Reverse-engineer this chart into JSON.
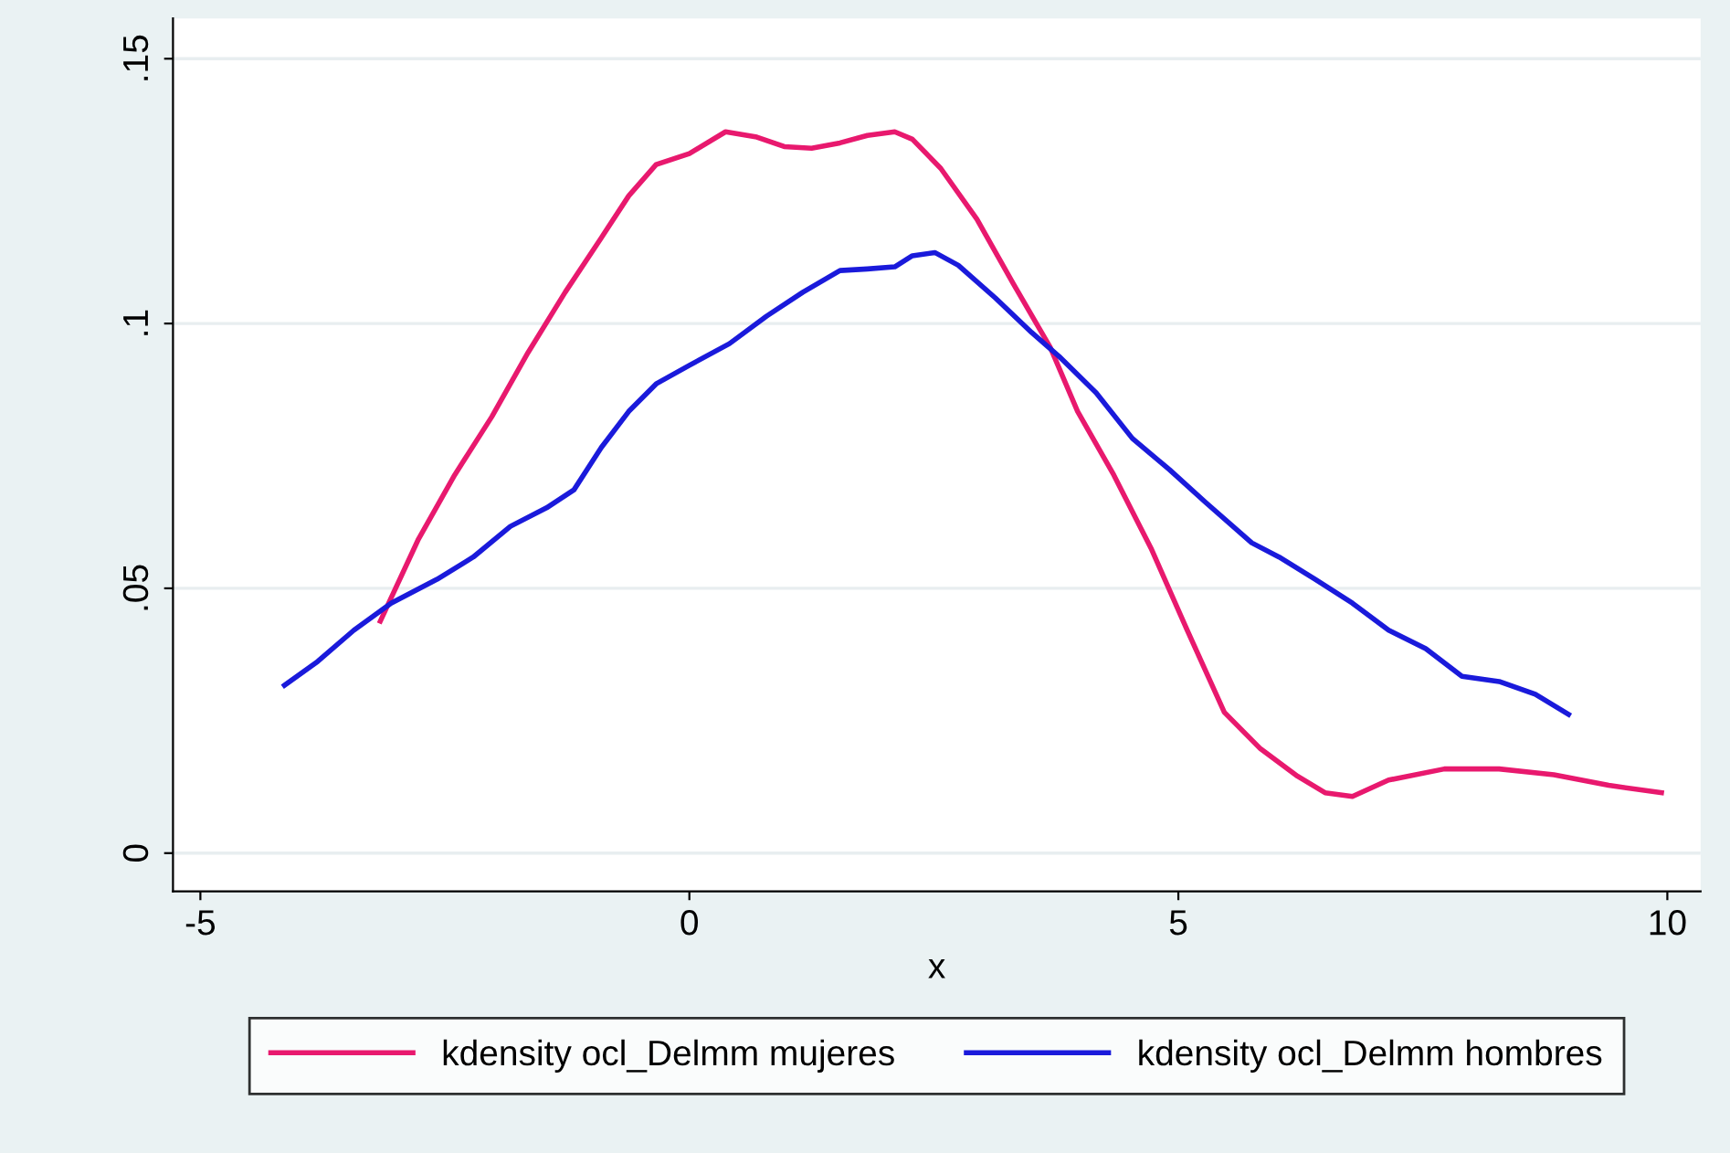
{
  "chart_data": {
    "type": "line",
    "xlabel": "x",
    "xlim": [
      -5.28,
      10.34
    ],
    "ylim": [
      -0.0072,
      0.1576
    ],
    "xticks": [
      -5,
      0,
      5,
      10
    ],
    "yticks": [
      {
        "value": 0,
        "label": "0"
      },
      {
        "value": 0.05,
        "label": ".05"
      },
      {
        "value": 0.1,
        "label": ".1"
      },
      {
        "value": 0.15,
        "label": ".15"
      }
    ],
    "grid": "y",
    "legend": "bottom",
    "marker": "none",
    "line_style": "solid",
    "series": [
      {
        "name": "kdensity ocl_Delmm mujeres",
        "color": "#e8196e",
        "x": [
          -3.16,
          -2.77,
          -2.4,
          -2.02,
          -1.65,
          -1.27,
          -0.9,
          -0.62,
          -0.34,
          0,
          0.37,
          0.69,
          0.97,
          1.25,
          1.54,
          1.82,
          2.1,
          2.28,
          2.57,
          2.94,
          3.31,
          3.69,
          3.97,
          4.34,
          4.72,
          5.09,
          5.47,
          5.84,
          6.22,
          6.5,
          6.78,
          7.15,
          7.72,
          8.28,
          8.84,
          9.4,
          9.94
        ],
        "values": [
          0.0438,
          0.0593,
          0.0714,
          0.0824,
          0.0945,
          0.1059,
          0.1162,
          0.1241,
          0.13,
          0.1321,
          0.1362,
          0.1352,
          0.1334,
          0.1331,
          0.1341,
          0.1355,
          0.1362,
          0.1348,
          0.1293,
          0.1197,
          0.1076,
          0.0955,
          0.0834,
          0.0714,
          0.0576,
          0.0421,
          0.0266,
          0.0197,
          0.0145,
          0.0114,
          0.0107,
          0.0138,
          0.0159,
          0.0159,
          0.0148,
          0.0128,
          0.0114
        ]
      },
      {
        "name": "kdensity ocl_Delmm hombres",
        "color": "#1a1adb",
        "x": [
          -4.14,
          -3.8,
          -3.43,
          -3.05,
          -2.58,
          -2.21,
          -1.83,
          -1.46,
          -1.18,
          -0.9,
          -0.62,
          -0.34,
          0,
          0.41,
          0.79,
          1.16,
          1.54,
          1.82,
          2.1,
          2.28,
          2.51,
          2.75,
          3.13,
          3.5,
          3.78,
          4.16,
          4.53,
          4.91,
          5.28,
          5.75,
          6.03,
          6.4,
          6.78,
          7.15,
          7.53,
          7.9,
          8.28,
          8.65,
          8.99
        ],
        "values": [
          0.0317,
          0.0362,
          0.0421,
          0.0472,
          0.0517,
          0.0559,
          0.0617,
          0.0652,
          0.0686,
          0.0766,
          0.0834,
          0.0886,
          0.0921,
          0.0962,
          0.1014,
          0.1059,
          0.11,
          0.1103,
          0.1107,
          0.1128,
          0.1134,
          0.111,
          0.1048,
          0.0983,
          0.0938,
          0.0869,
          0.0783,
          0.0724,
          0.0662,
          0.0586,
          0.0559,
          0.0517,
          0.0472,
          0.0421,
          0.0386,
          0.0334,
          0.0324,
          0.03,
          0.0262
        ]
      }
    ]
  }
}
